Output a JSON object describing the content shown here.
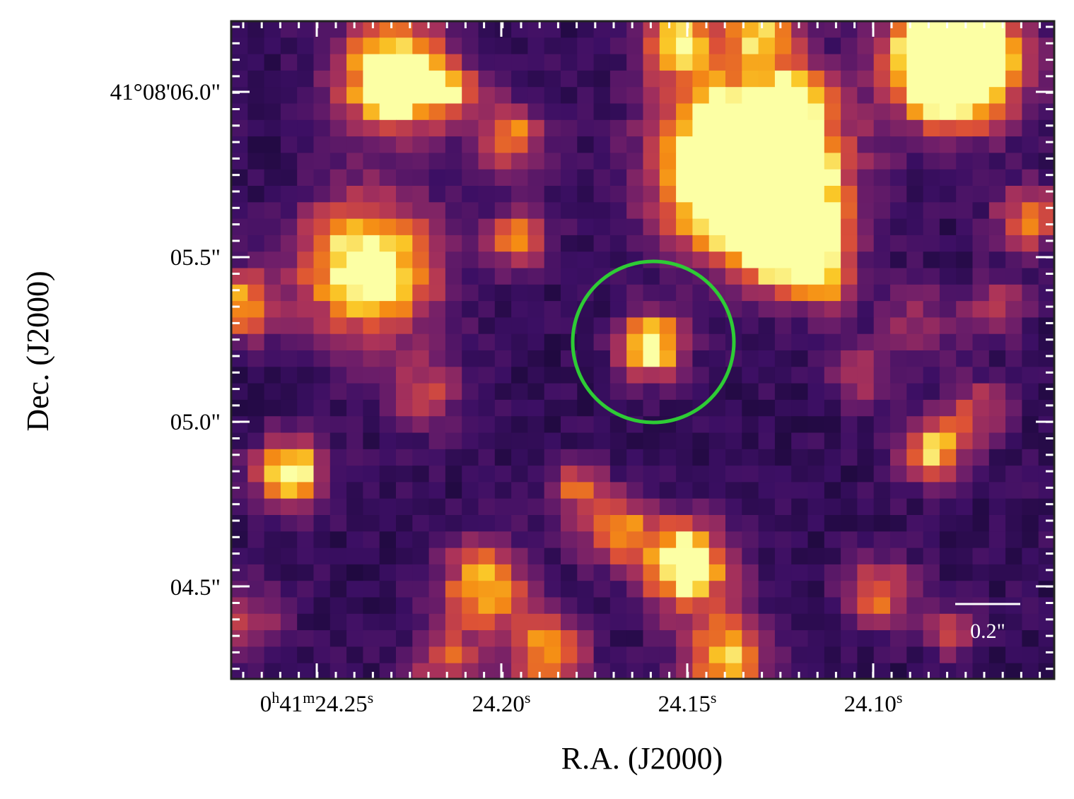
{
  "image": {
    "colormap": "inferno",
    "background_color": "#2a0f4f",
    "grid": false
  },
  "axes": {
    "xlabel": "R.A. (J2000)",
    "ylabel": "Dec. (J2000)",
    "x_ticks": [
      {
        "prefix": "0",
        "h": "h",
        "mid": "41",
        "m": "m",
        "main": "24.25",
        "s": "s"
      },
      {
        "prefix": "",
        "h": "",
        "mid": "",
        "m": "",
        "main": "24.20",
        "s": "s"
      },
      {
        "prefix": "",
        "h": "",
        "mid": "",
        "m": "",
        "main": "24.15",
        "s": "s"
      },
      {
        "prefix": "",
        "h": "",
        "mid": "",
        "m": "",
        "main": "24.10",
        "s": "s"
      }
    ],
    "y_ticks": [
      "41°08'06.0\"",
      "05.5\"",
      "05.0\"",
      "04.5\""
    ]
  },
  "marker": {
    "shape": "circle",
    "color": "#2ecc35"
  },
  "scalebar": {
    "label": "0.2\"",
    "color": "#ffffff"
  }
}
